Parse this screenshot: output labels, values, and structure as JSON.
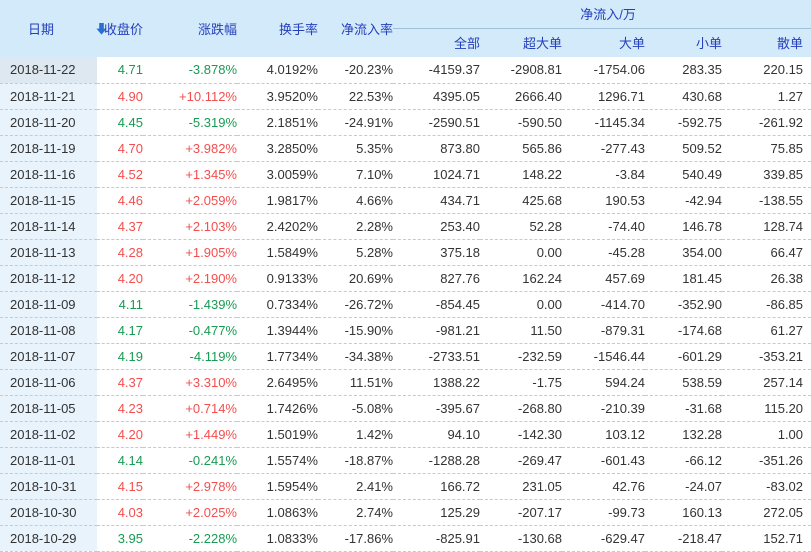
{
  "table": {
    "group_header": "净流入/万",
    "columns": [
      {
        "key": "date",
        "label": "日期"
      },
      {
        "key": "close",
        "label": "收盘价"
      },
      {
        "key": "change",
        "label": "涨跌幅"
      },
      {
        "key": "turnover",
        "label": "换手率"
      },
      {
        "key": "net_rate",
        "label": "净流入率"
      },
      {
        "key": "all",
        "label": "全部"
      },
      {
        "key": "xlarge",
        "label": "超大单"
      },
      {
        "key": "large",
        "label": "大单"
      },
      {
        "key": "small",
        "label": "小单"
      },
      {
        "key": "retail",
        "label": "散单"
      }
    ],
    "sort": {
      "column": "date",
      "direction": "desc",
      "icon": "sort-descending-icon"
    },
    "rows": [
      {
        "date": "2018-11-22",
        "close": "4.71",
        "change": "-3.878%",
        "turnover": "4.0192%",
        "net_rate": "-20.23%",
        "all": "-4159.37",
        "xlarge": "-2908.81",
        "large": "-1754.06",
        "small": "283.35",
        "retail": "220.15",
        "trend": "down"
      },
      {
        "date": "2018-11-21",
        "close": "4.90",
        "change": "+10.112%",
        "turnover": "3.9520%",
        "net_rate": "22.53%",
        "all": "4395.05",
        "xlarge": "2666.40",
        "large": "1296.71",
        "small": "430.68",
        "retail": "1.27",
        "trend": "up"
      },
      {
        "date": "2018-11-20",
        "close": "4.45",
        "change": "-5.319%",
        "turnover": "2.1851%",
        "net_rate": "-24.91%",
        "all": "-2590.51",
        "xlarge": "-590.50",
        "large": "-1145.34",
        "small": "-592.75",
        "retail": "-261.92",
        "trend": "down"
      },
      {
        "date": "2018-11-19",
        "close": "4.70",
        "change": "+3.982%",
        "turnover": "3.2850%",
        "net_rate": "5.35%",
        "all": "873.80",
        "xlarge": "565.86",
        "large": "-277.43",
        "small": "509.52",
        "retail": "75.85",
        "trend": "up"
      },
      {
        "date": "2018-11-16",
        "close": "4.52",
        "change": "+1.345%",
        "turnover": "3.0059%",
        "net_rate": "7.10%",
        "all": "1024.71",
        "xlarge": "148.22",
        "large": "-3.84",
        "small": "540.49",
        "retail": "339.85",
        "trend": "up"
      },
      {
        "date": "2018-11-15",
        "close": "4.46",
        "change": "+2.059%",
        "turnover": "1.9817%",
        "net_rate": "4.66%",
        "all": "434.71",
        "xlarge": "425.68",
        "large": "190.53",
        "small": "-42.94",
        "retail": "-138.55",
        "trend": "up"
      },
      {
        "date": "2018-11-14",
        "close": "4.37",
        "change": "+2.103%",
        "turnover": "2.4202%",
        "net_rate": "2.28%",
        "all": "253.40",
        "xlarge": "52.28",
        "large": "-74.40",
        "small": "146.78",
        "retail": "128.74",
        "trend": "up"
      },
      {
        "date": "2018-11-13",
        "close": "4.28",
        "change": "+1.905%",
        "turnover": "1.5849%",
        "net_rate": "5.28%",
        "all": "375.18",
        "xlarge": "0.00",
        "large": "-45.28",
        "small": "354.00",
        "retail": "66.47",
        "trend": "up"
      },
      {
        "date": "2018-11-12",
        "close": "4.20",
        "change": "+2.190%",
        "turnover": "0.9133%",
        "net_rate": "20.69%",
        "all": "827.76",
        "xlarge": "162.24",
        "large": "457.69",
        "small": "181.45",
        "retail": "26.38",
        "trend": "up"
      },
      {
        "date": "2018-11-09",
        "close": "4.11",
        "change": "-1.439%",
        "turnover": "0.7334%",
        "net_rate": "-26.72%",
        "all": "-854.45",
        "xlarge": "0.00",
        "large": "-414.70",
        "small": "-352.90",
        "retail": "-86.85",
        "trend": "down"
      },
      {
        "date": "2018-11-08",
        "close": "4.17",
        "change": "-0.477%",
        "turnover": "1.3944%",
        "net_rate": "-15.90%",
        "all": "-981.21",
        "xlarge": "11.50",
        "large": "-879.31",
        "small": "-174.68",
        "retail": "61.27",
        "trend": "down"
      },
      {
        "date": "2018-11-07",
        "close": "4.19",
        "change": "-4.119%",
        "turnover": "1.7734%",
        "net_rate": "-34.38%",
        "all": "-2733.51",
        "xlarge": "-232.59",
        "large": "-1546.44",
        "small": "-601.29",
        "retail": "-353.21",
        "trend": "down"
      },
      {
        "date": "2018-11-06",
        "close": "4.37",
        "change": "+3.310%",
        "turnover": "2.6495%",
        "net_rate": "11.51%",
        "all": "1388.22",
        "xlarge": "-1.75",
        "large": "594.24",
        "small": "538.59",
        "retail": "257.14",
        "trend": "up"
      },
      {
        "date": "2018-11-05",
        "close": "4.23",
        "change": "+0.714%",
        "turnover": "1.7426%",
        "net_rate": "-5.08%",
        "all": "-395.67",
        "xlarge": "-268.80",
        "large": "-210.39",
        "small": "-31.68",
        "retail": "115.20",
        "trend": "up"
      },
      {
        "date": "2018-11-02",
        "close": "4.20",
        "change": "+1.449%",
        "turnover": "1.5019%",
        "net_rate": "1.42%",
        "all": "94.10",
        "xlarge": "-142.30",
        "large": "103.12",
        "small": "132.28",
        "retail": "1.00",
        "trend": "up"
      },
      {
        "date": "2018-11-01",
        "close": "4.14",
        "change": "-0.241%",
        "turnover": "1.5574%",
        "net_rate": "-18.87%",
        "all": "-1288.28",
        "xlarge": "-269.47",
        "large": "-601.43",
        "small": "-66.12",
        "retail": "-351.26",
        "trend": "down"
      },
      {
        "date": "2018-10-31",
        "close": "4.15",
        "change": "+2.978%",
        "turnover": "1.5954%",
        "net_rate": "2.41%",
        "all": "166.72",
        "xlarge": "231.05",
        "large": "42.76",
        "small": "-24.07",
        "retail": "-83.02",
        "trend": "up"
      },
      {
        "date": "2018-10-30",
        "close": "4.03",
        "change": "+2.025%",
        "turnover": "1.0863%",
        "net_rate": "2.74%",
        "all": "125.29",
        "xlarge": "-207.17",
        "large": "-99.73",
        "small": "160.13",
        "retail": "272.05",
        "trend": "up"
      },
      {
        "date": "2018-10-29",
        "close": "3.95",
        "change": "-2.228%",
        "turnover": "1.0833%",
        "net_rate": "-17.86%",
        "all": "-825.91",
        "xlarge": "-130.68",
        "large": "-629.47",
        "small": "-218.47",
        "retail": "152.71",
        "trend": "down"
      }
    ]
  },
  "colors": {
    "up": "#f34e4e",
    "down": "#189b52",
    "header_text": "#2440ba",
    "header_bg": "#d3eafb",
    "date_col_bg": "#e8f3fc",
    "active_date_bg": "#dde8f0",
    "sort_arrow": "#2a6fd0"
  }
}
